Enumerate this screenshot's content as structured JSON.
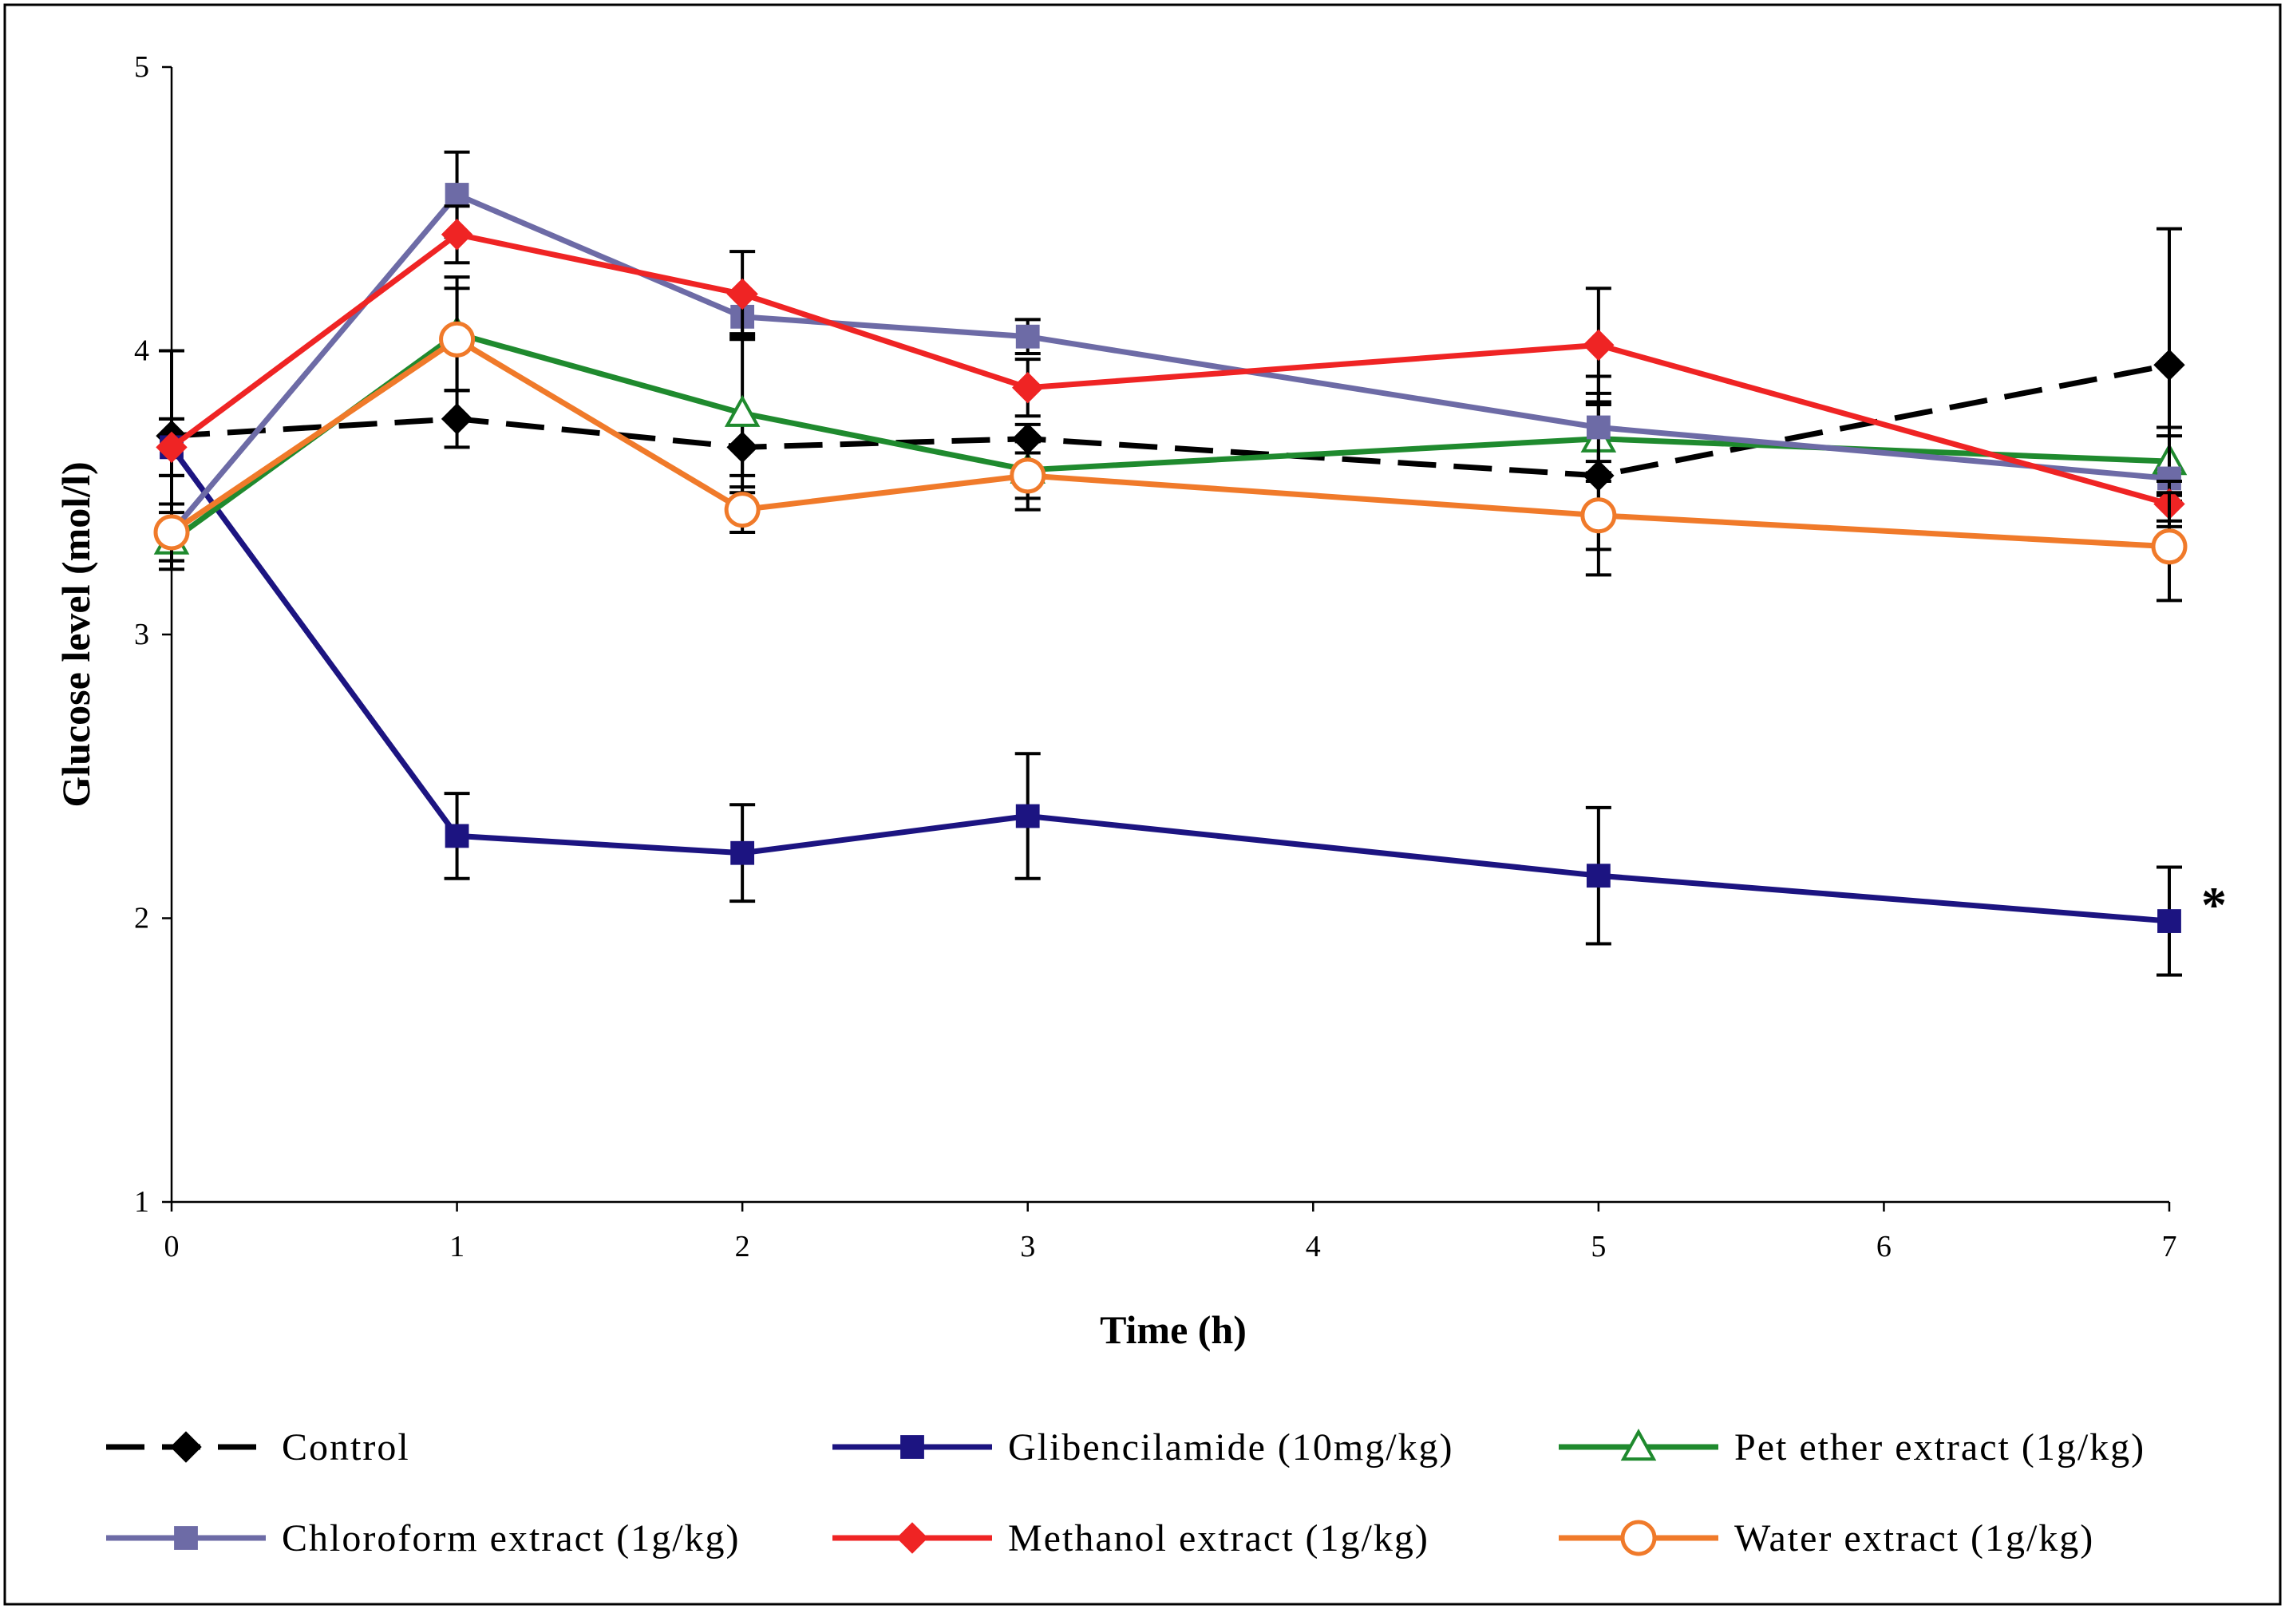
{
  "chart_data": {
    "type": "line",
    "title": "",
    "xlabel": "Time (h)",
    "ylabel": "Glucose level (mol/l)",
    "xlim": [
      0,
      7
    ],
    "ylim": [
      1,
      5
    ],
    "xticks": [
      0,
      1,
      2,
      3,
      4,
      5,
      6,
      7
    ],
    "xtick_labels": [
      "0",
      "1",
      "2",
      "3",
      "4",
      "5",
      "6",
      "7"
    ],
    "yticks": [
      1,
      2,
      3,
      4,
      5
    ],
    "ytick_labels": [
      "1",
      "2",
      "3",
      "4",
      "5"
    ],
    "grid": false,
    "legend_position": "bottom",
    "x": [
      0,
      1,
      2,
      3,
      5,
      7
    ],
    "series": [
      {
        "name": "Control",
        "color": "#000000",
        "dash": "dashed",
        "marker": "diamond",
        "values": [
          3.7,
          3.76,
          3.66,
          3.69,
          3.56,
          3.95
        ],
        "errors": [
          0.3,
          0.1,
          0.1,
          0.05,
          0.35,
          0.48
        ]
      },
      {
        "name": "Glibencilamide (10mg/kg)",
        "color": "#1c1481",
        "dash": "solid",
        "marker": "square",
        "values": [
          3.66,
          2.29,
          2.23,
          2.36,
          2.15,
          1.99
        ],
        "errors": [
          0.1,
          0.15,
          0.17,
          0.22,
          0.24,
          0.19
        ]
      },
      {
        "name": "Pet ether extract (1g/kg)",
        "color": "#1f8a2e",
        "dash": "solid",
        "marker": "open-triangle",
        "values": [
          3.33,
          4.06,
          3.78,
          3.58,
          3.69,
          3.61
        ],
        "errors": [
          0.1,
          0.2,
          0.28,
          0.1,
          0.12,
          0.12
        ]
      },
      {
        "name": "Chloroform extract (1g/kg)",
        "color": "#6d6ba6",
        "dash": "solid",
        "marker": "square",
        "values": [
          3.36,
          4.55,
          4.12,
          4.05,
          3.73,
          3.55
        ],
        "errors": [
          0.1,
          0.15,
          0.08,
          0.06,
          0.12,
          0.15
        ]
      },
      {
        "name": "Methanol extract (1g/kg)",
        "color": "#ef2424",
        "dash": "solid",
        "marker": "diamond",
        "values": [
          3.66,
          4.41,
          4.2,
          3.87,
          4.02,
          3.46
        ],
        "errors": [
          0.1,
          0.1,
          0.15,
          0.1,
          0.2,
          0.08
        ]
      },
      {
        "name": "Water extract (1g/kg)",
        "color": "#f07a2a",
        "dash": "solid",
        "marker": "open-circle",
        "values": [
          3.36,
          4.04,
          3.44,
          3.56,
          3.42,
          3.31
        ],
        "errors": [
          0.1,
          0.18,
          0.08,
          0.12,
          0.12,
          0.19
        ]
      }
    ],
    "annotations": [
      {
        "text": "*",
        "x": 7,
        "y": 2.1
      }
    ]
  }
}
